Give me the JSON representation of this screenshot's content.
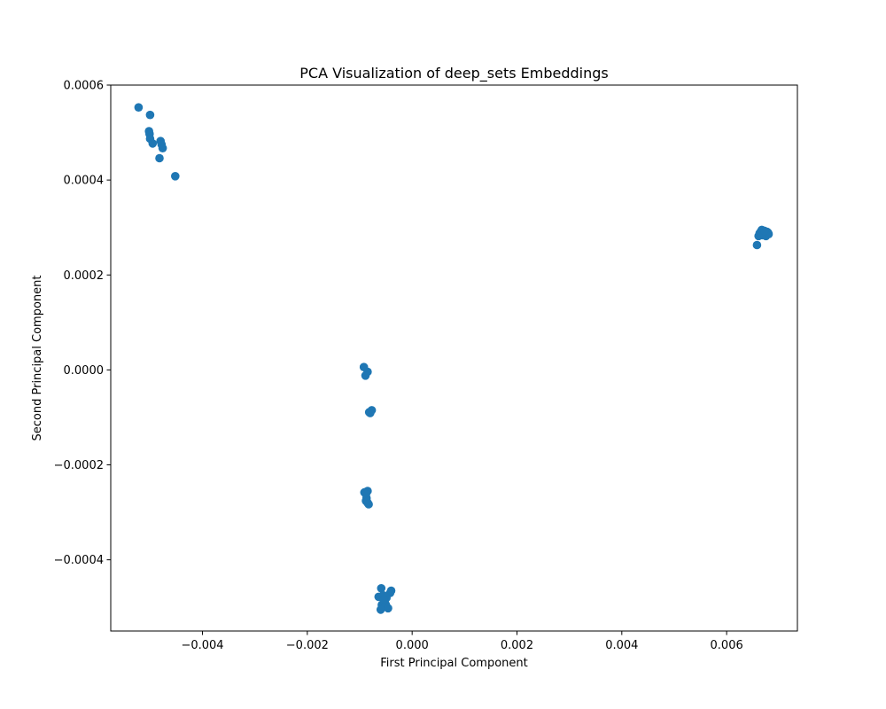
{
  "chart_data": {
    "type": "scatter",
    "title": "PCA Visualization of deep_sets Embeddings",
    "xlabel": "First Principal Component",
    "ylabel": "Second Principal Component",
    "xlim": [
      -0.00575,
      0.00735
    ],
    "ylim": [
      -0.00055,
      0.0006
    ],
    "xticks": [
      -0.004,
      -0.002,
      0.0,
      0.002,
      0.004,
      0.006
    ],
    "xtick_labels": [
      "−0.004",
      "−0.002",
      "0.000",
      "0.002",
      "0.004",
      "0.006"
    ],
    "yticks": [
      -0.0004,
      -0.0002,
      0.0,
      0.0002,
      0.0004,
      0.0006
    ],
    "ytick_labels": [
      "−0.0004",
      "−0.0002",
      "0.0000",
      "0.0002",
      "0.0004",
      "0.0006"
    ],
    "grid": false,
    "marker_color": "#1f77b4",
    "points": [
      [
        -0.00522,
        0.000553
      ],
      [
        -0.005,
        0.000537
      ],
      [
        -0.00502,
        0.000503
      ],
      [
        -0.00501,
        0.000497
      ],
      [
        -0.005,
        0.000487
      ],
      [
        -0.00495,
        0.000477
      ],
      [
        -0.0048,
        0.000482
      ],
      [
        -0.00478,
        0.000475
      ],
      [
        -0.00476,
        0.000467
      ],
      [
        -0.00482,
        0.000446
      ],
      [
        -0.00452,
        0.000408
      ],
      [
        0.00658,
        0.000263
      ],
      [
        0.00661,
        0.000282
      ],
      [
        0.00663,
        0.000288
      ],
      [
        0.00665,
        0.000291
      ],
      [
        0.00667,
        0.000295
      ],
      [
        0.00669,
        0.000289
      ],
      [
        0.00671,
        0.000287
      ],
      [
        0.00673,
        0.000286
      ],
      [
        0.00675,
        0.000282
      ],
      [
        0.00677,
        0.000291
      ],
      [
        0.00679,
        0.000289
      ],
      [
        0.0068,
        0.000286
      ],
      [
        0.00668,
        0.000284
      ],
      [
        0.00672,
        0.000293
      ],
      [
        -0.00092,
        6e-06
      ],
      [
        -0.00085,
        -4e-06
      ],
      [
        -0.00089,
        -1.2e-05
      ],
      [
        -0.00082,
        -8.9e-05
      ],
      [
        -0.00077,
        -8.5e-05
      ],
      [
        -0.0008,
        -9.1e-05
      ],
      [
        -0.00091,
        -0.000258
      ],
      [
        -0.00085,
        -0.000255
      ],
      [
        -0.00088,
        -0.000262
      ],
      [
        -0.00087,
        -0.00027
      ],
      [
        -0.00088,
        -0.000276
      ],
      [
        -0.00085,
        -0.00028
      ],
      [
        -0.00083,
        -0.000283
      ],
      [
        -0.00086,
        -0.000278
      ],
      [
        -0.00059,
        -0.00046
      ],
      [
        -0.0004,
        -0.000465
      ],
      [
        -0.00042,
        -0.00047
      ],
      [
        -0.00064,
        -0.000478
      ],
      [
        -0.00055,
        -0.000475
      ],
      [
        -0.00049,
        -0.00048
      ],
      [
        -0.00052,
        -0.00049
      ],
      [
        -0.00058,
        -0.000495
      ],
      [
        -0.0005,
        -0.000495
      ],
      [
        -0.0006,
        -0.000505
      ],
      [
        -0.00046,
        -0.000502
      ],
      [
        -0.00054,
        -0.000485
      ]
    ]
  }
}
